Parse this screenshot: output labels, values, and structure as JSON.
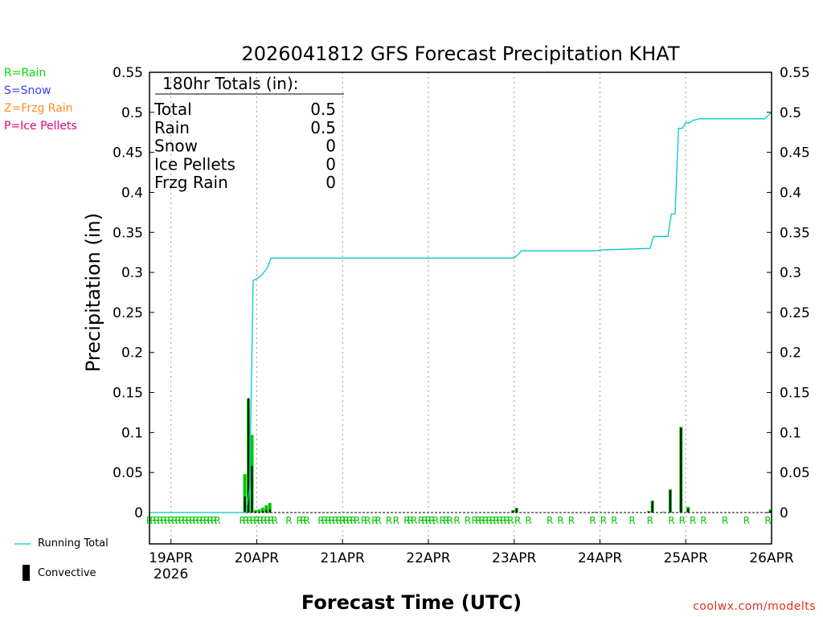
{
  "chart_data": {
    "type": "bar",
    "title": "2026041812 GFS Forecast Precipitation KHAT",
    "xlabel": "Forecast Time (UTC)",
    "ylabel": "Precipitation (in)",
    "ylim": [
      0,
      0.55
    ],
    "y_ticks": [
      "0",
      "0.05",
      "0.1",
      "0.15",
      "0.2",
      "0.25",
      "0.3",
      "0.35",
      "0.4",
      "0.45",
      "0.5",
      "0.55"
    ],
    "x_range_hours": [
      6,
      180
    ],
    "x_ticks": [
      {
        "hour": 12,
        "label": "19APR",
        "sublabel": "2026"
      },
      {
        "hour": 36,
        "label": "20APR"
      },
      {
        "hour": 60,
        "label": "21APR"
      },
      {
        "hour": 84,
        "label": "22APR"
      },
      {
        "hour": 108,
        "label": "23APR"
      },
      {
        "hour": 132,
        "label": "24APR"
      },
      {
        "hour": 156,
        "label": "25APR"
      },
      {
        "hour": 180,
        "label": "26APR"
      }
    ],
    "totals_box": {
      "header": "180hr Totals (in):",
      "rows": [
        {
          "label": "Total",
          "value": "0.5"
        },
        {
          "label": "Rain",
          "value": "0.5"
        },
        {
          "label": "Snow",
          "value": "0"
        },
        {
          "label": "Ice Pellets",
          "value": "0"
        },
        {
          "label": "Frzg Rain",
          "value": "0"
        }
      ]
    },
    "series": [
      {
        "name": "Total precipitation (Rain)",
        "color": "#00c800",
        "x": [
          33,
          34,
          35,
          36,
          37,
          38,
          39,
          40,
          108,
          109,
          131,
          146,
          147,
          150,
          152,
          155,
          157,
          180
        ],
        "values": [
          0.048,
          0.142,
          0.097,
          0.003,
          0.004,
          0.006,
          0.009,
          0.012,
          0.003,
          0.006,
          0.001,
          0.002,
          0.015,
          0.001,
          0.029,
          0.107,
          0.007,
          0.004
        ]
      },
      {
        "name": "Convective",
        "color": "#000000",
        "x": [
          33,
          34,
          35,
          36,
          37,
          38,
          39,
          40,
          108,
          109,
          131,
          146,
          147,
          150,
          152,
          155,
          157,
          180
        ],
        "values": [
          0.02,
          0.143,
          0.058,
          0.001,
          0.001,
          0.002,
          0.003,
          0.004,
          0.002,
          0.005,
          0.0,
          0.001,
          0.014,
          0.0,
          0.028,
          0.106,
          0.005,
          0.002
        ]
      },
      {
        "name": "Running Total",
        "color": "#00c8c8",
        "x": [
          6,
          33,
          34,
          35,
          36,
          37,
          38,
          39,
          40,
          108,
          109,
          110,
          131,
          132,
          146,
          147,
          148,
          151,
          152,
          153,
          154,
          155,
          156,
          157,
          158,
          160,
          178,
          180
        ],
        "values": [
          0,
          0,
          0.03,
          0.29,
          0.292,
          0.295,
          0.3,
          0.306,
          0.318,
          0.318,
          0.322,
          0.327,
          0.327,
          0.328,
          0.33,
          0.345,
          0.345,
          0.345,
          0.373,
          0.373,
          0.48,
          0.48,
          0.487,
          0.487,
          0.49,
          0.492,
          0.492,
          0.5
        ]
      }
    ],
    "ptype_hours": [
      6,
      7,
      8,
      9,
      10,
      11,
      12,
      13,
      14,
      15,
      16,
      17,
      18,
      19,
      20,
      21,
      22,
      23,
      24,
      25,
      32,
      33,
      34,
      35,
      36,
      37,
      38,
      39,
      40,
      41,
      45,
      48,
      49,
      50,
      54,
      55,
      56,
      57,
      58,
      59,
      60,
      61,
      62,
      63,
      64,
      66,
      67,
      69,
      70,
      73,
      75,
      78,
      79,
      80,
      82,
      83,
      84,
      85,
      86,
      88,
      89,
      90,
      92,
      95,
      97,
      98,
      99,
      100,
      101,
      102,
      103,
      104,
      105,
      106,
      107,
      109,
      112,
      118,
      121,
      124,
      130,
      133,
      136,
      141,
      146,
      152,
      155,
      158,
      161,
      167,
      173,
      179
    ],
    "ptype_symbol": "R",
    "ptype_color": "#00c800"
  },
  "legend_ptype": [
    {
      "text": "R=Rain",
      "color": "#00dd00"
    },
    {
      "text": "S=Snow",
      "color": "#3c3cff"
    },
    {
      "text": "Z=Frzg Rain",
      "color": "#ff8c1e"
    },
    {
      "text": "P=Ice Pellets",
      "color": "#e6007e"
    }
  ],
  "legend_bottom": {
    "running_total": "Running Total",
    "convective": "Convective"
  },
  "credit": "coolwx.com/modelts",
  "colors": {
    "rain": "#00c800",
    "convective": "#000000",
    "running_total": "#00c8c8",
    "credit": "#e0301e"
  }
}
